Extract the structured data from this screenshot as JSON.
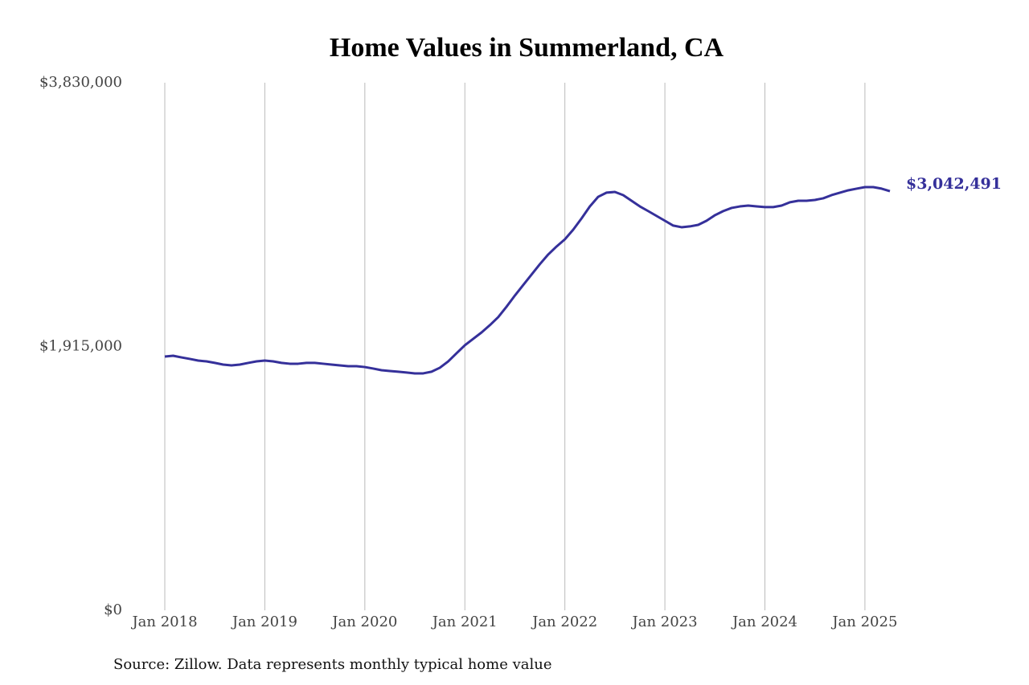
{
  "chart_data": {
    "type": "line",
    "title": "Home Values in Summerland, CA",
    "source": "Source: Zillow. Data represents monthly typical home value",
    "color": "#35309a",
    "grid": true,
    "x": [
      "2018-01",
      "2018-02",
      "2018-03",
      "2018-04",
      "2018-05",
      "2018-06",
      "2018-07",
      "2018-08",
      "2018-09",
      "2018-10",
      "2018-11",
      "2018-12",
      "2019-01",
      "2019-02",
      "2019-03",
      "2019-04",
      "2019-05",
      "2019-06",
      "2019-07",
      "2019-08",
      "2019-09",
      "2019-10",
      "2019-11",
      "2019-12",
      "2020-01",
      "2020-02",
      "2020-03",
      "2020-04",
      "2020-05",
      "2020-06",
      "2020-07",
      "2020-08",
      "2020-09",
      "2020-10",
      "2020-11",
      "2020-12",
      "2021-01",
      "2021-02",
      "2021-03",
      "2021-04",
      "2021-05",
      "2021-06",
      "2021-07",
      "2021-08",
      "2021-09",
      "2021-10",
      "2021-11",
      "2021-12",
      "2022-01",
      "2022-02",
      "2022-03",
      "2022-04",
      "2022-05",
      "2022-06",
      "2022-07",
      "2022-08",
      "2022-09",
      "2022-10",
      "2022-11",
      "2022-12",
      "2023-01",
      "2023-02",
      "2023-03",
      "2023-04",
      "2023-05",
      "2023-06",
      "2023-07",
      "2023-08",
      "2023-09",
      "2023-10",
      "2023-11",
      "2023-12",
      "2024-01",
      "2024-02",
      "2024-03",
      "2024-04",
      "2024-05",
      "2024-06",
      "2024-07",
      "2024-08",
      "2024-09",
      "2024-10",
      "2024-11",
      "2024-12",
      "2025-01",
      "2025-02",
      "2025-03",
      "2025-04"
    ],
    "values": [
      1842000,
      1848000,
      1836000,
      1825000,
      1813000,
      1807000,
      1796000,
      1784000,
      1778000,
      1784000,
      1796000,
      1807000,
      1813000,
      1807000,
      1796000,
      1790000,
      1790000,
      1796000,
      1796000,
      1790000,
      1784000,
      1778000,
      1772000,
      1772000,
      1766000,
      1755000,
      1743000,
      1737000,
      1732000,
      1726000,
      1720000,
      1720000,
      1732000,
      1761000,
      1807000,
      1866000,
      1924000,
      1971000,
      2017000,
      2070000,
      2128000,
      2204000,
      2285000,
      2361000,
      2437000,
      2513000,
      2583000,
      2641000,
      2693000,
      2763000,
      2845000,
      2932000,
      3002000,
      3032000,
      3037000,
      3014000,
      2973000,
      2932000,
      2898000,
      2863000,
      2828000,
      2793000,
      2781000,
      2787000,
      2798000,
      2828000,
      2868000,
      2898000,
      2921000,
      2932000,
      2938000,
      2932000,
      2927000,
      2927000,
      2938000,
      2962000,
      2973000,
      2973000,
      2979000,
      2991000,
      3014000,
      3032000,
      3049000,
      3061000,
      3072000,
      3072000,
      3061000,
      3042491
    ],
    "value_labels": [
      null,
      null,
      null,
      null,
      null,
      null,
      null,
      null,
      null,
      null,
      null,
      null,
      null,
      null,
      null,
      null,
      null,
      null,
      null,
      null,
      null,
      null,
      null,
      null,
      null,
      null,
      null,
      null,
      null,
      null,
      null,
      null,
      null,
      null,
      null,
      null,
      null,
      null,
      null,
      null,
      null,
      null,
      null,
      null,
      null,
      null,
      null,
      null,
      null,
      null,
      null,
      null,
      null,
      null,
      null,
      null,
      null,
      null,
      null,
      null,
      null,
      null,
      null,
      null,
      null,
      null,
      null,
      null,
      null,
      null,
      null,
      null,
      null,
      null,
      null,
      null,
      null,
      null,
      null,
      null,
      null,
      null,
      null,
      null,
      null,
      null,
      null,
      "$3,042,491"
    ],
    "xlim": [
      "2018-01",
      "2025-04"
    ],
    "xticks": [
      {
        "value": "2018-01",
        "label": "Jan 2018"
      },
      {
        "value": "2019-01",
        "label": "Jan 2019"
      },
      {
        "value": "2020-01",
        "label": "Jan 2020"
      },
      {
        "value": "2021-01",
        "label": "Jan 2021"
      },
      {
        "value": "2022-01",
        "label": "Jan 2022"
      },
      {
        "value": "2023-01",
        "label": "Jan 2023"
      },
      {
        "value": "2024-01",
        "label": "Jan 2024"
      },
      {
        "value": "2025-01",
        "label": "Jan 2025"
      }
    ],
    "ylim": [
      0,
      3830000
    ],
    "yticks": [
      {
        "value": 0,
        "label": "$0"
      },
      {
        "value": 1915000,
        "label": "$1,915,000"
      },
      {
        "value": 3830000,
        "label": "$3,830,000"
      }
    ]
  }
}
